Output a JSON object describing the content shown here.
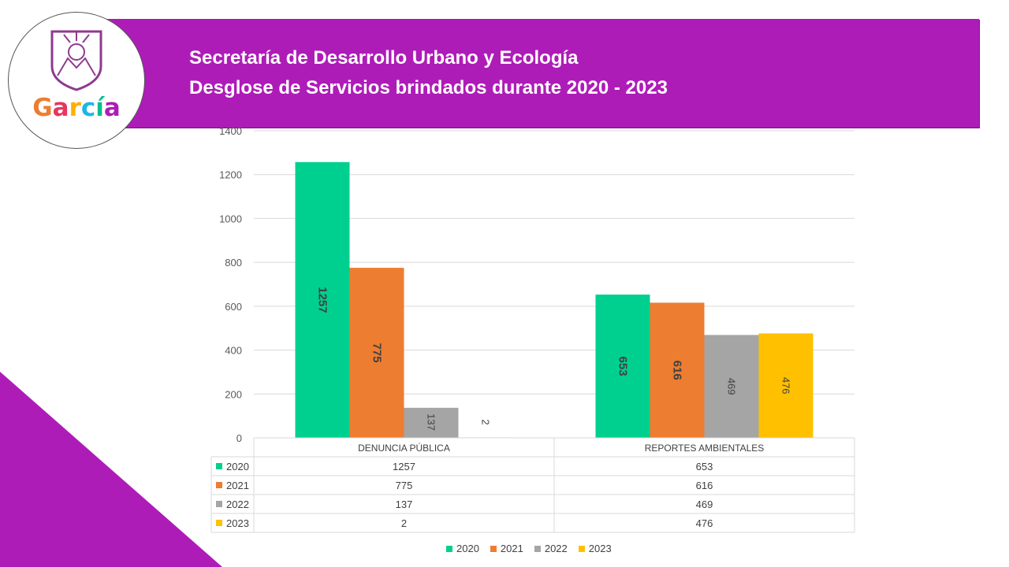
{
  "header": {
    "title_line1": "Secretaría de Desarrollo Urbano y Ecología",
    "title_line2": "Desglose de Servicios brindados durante 2020 - 2023",
    "logo_text": "García"
  },
  "colors": {
    "banner": "#ae1cb8",
    "s2020": "#00d08f",
    "s2021": "#ed7d31",
    "s2022": "#a5a5a5",
    "s2023": "#ffc000"
  },
  "chart_data": {
    "type": "bar",
    "categories": [
      "DENUNCIA PÚBLICA",
      "REPORTES AMBIENTALES"
    ],
    "series": [
      {
        "name": "2020",
        "values": [
          1257,
          653
        ]
      },
      {
        "name": "2021",
        "values": [
          775,
          616
        ]
      },
      {
        "name": "2022",
        "values": [
          137,
          469
        ]
      },
      {
        "name": "2023",
        "values": [
          2,
          476
        ]
      }
    ],
    "ylim": [
      0,
      1400
    ],
    "yticks": [
      0,
      200,
      400,
      600,
      800,
      1000,
      1200,
      1400
    ],
    "grid": true,
    "legend": "bottom",
    "data_table": true
  }
}
